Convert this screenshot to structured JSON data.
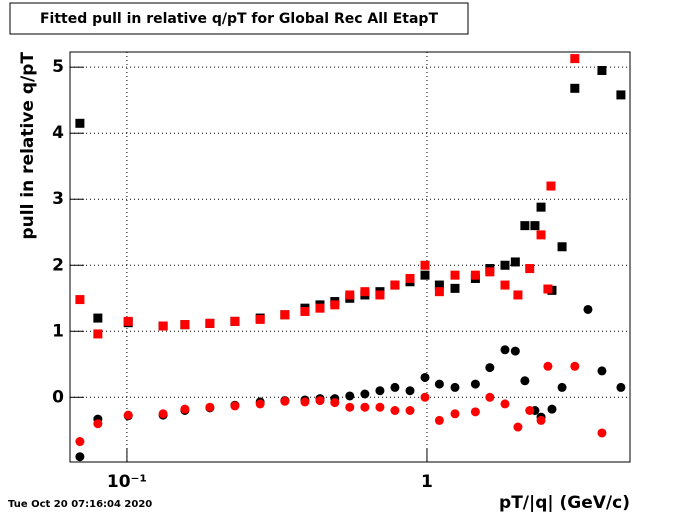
{
  "chart_data": {
    "type": "scatter",
    "title": "Fitted pull in relative q/pT for Global Rec All EtapT",
    "x_label": "pT/|q| (GeV/c)",
    "y_label": "pull in relative q/pT",
    "timestamp": "Tue Oct 20 07:16:04 2020",
    "xlog": true,
    "grid": true,
    "xlim": [
      0.0646,
      4.75
    ],
    "ylim": [
      -0.98,
      5.23
    ],
    "xticks": [
      {
        "value": 0.1,
        "label": "10⁻¹"
      },
      1
    ],
    "yticks": [
      0,
      1,
      2,
      3,
      4,
      5
    ],
    "series": [
      {
        "name": "black squares",
        "color": "#000000",
        "marker": "square",
        "x": [
          0.0697,
          0.08,
          0.101,
          0.132,
          0.156,
          0.189,
          0.229,
          0.278,
          0.336,
          0.392,
          0.44,
          0.493,
          0.553,
          0.621,
          0.697,
          0.782,
          0.878,
          0.985,
          1.1,
          1.24,
          1.45,
          1.62,
          1.82,
          1.97,
          2.12,
          2.29,
          2.4,
          2.61,
          2.82,
          3.11,
          3.83,
          4.43
        ],
        "values": [
          4.15,
          1.2,
          1.13,
          1.08,
          1.1,
          1.12,
          1.15,
          1.2,
          1.25,
          1.35,
          1.4,
          1.45,
          1.5,
          1.55,
          1.6,
          1.7,
          1.75,
          1.85,
          1.7,
          1.65,
          1.8,
          1.95,
          2.0,
          2.05,
          2.6,
          2.6,
          2.88,
          1.62,
          2.28,
          4.68,
          4.95,
          4.58
        ]
      },
      {
        "name": "red squares",
        "color": "#ff0000",
        "marker": "square",
        "x": [
          0.0697,
          0.08,
          0.101,
          0.132,
          0.156,
          0.189,
          0.229,
          0.278,
          0.336,
          0.392,
          0.44,
          0.493,
          0.553,
          0.621,
          0.697,
          0.782,
          0.878,
          0.985,
          1.1,
          1.24,
          1.45,
          1.62,
          1.82,
          2.01,
          2.2,
          2.4,
          2.53,
          2.59,
          3.11
        ],
        "values": [
          1.48,
          0.96,
          1.15,
          1.08,
          1.1,
          1.12,
          1.15,
          1.18,
          1.25,
          1.3,
          1.35,
          1.4,
          1.55,
          1.6,
          1.55,
          1.7,
          1.8,
          2.0,
          1.6,
          1.85,
          1.85,
          1.9,
          1.7,
          1.55,
          1.95,
          2.46,
          1.64,
          3.2,
          5.13
        ]
      },
      {
        "name": "black circles",
        "color": "#000000",
        "marker": "circle",
        "x": [
          0.0697,
          0.08,
          0.101,
          0.132,
          0.156,
          0.189,
          0.229,
          0.278,
          0.336,
          0.392,
          0.44,
          0.493,
          0.553,
          0.621,
          0.697,
          0.782,
          0.878,
          0.985,
          1.1,
          1.24,
          1.45,
          1.62,
          1.82,
          1.97,
          2.12,
          2.29,
          2.4,
          2.61,
          2.82,
          3.44,
          3.83,
          4.43
        ],
        "values": [
          -0.9,
          -0.33,
          -0.28,
          -0.27,
          -0.2,
          -0.16,
          -0.12,
          -0.07,
          -0.05,
          -0.04,
          -0.02,
          -0.02,
          0.02,
          0.05,
          0.1,
          0.15,
          0.1,
          0.3,
          0.2,
          0.15,
          0.2,
          0.45,
          0.72,
          0.7,
          0.25,
          -0.2,
          -0.3,
          -0.18,
          0.15,
          1.33,
          0.4,
          0.15
        ]
      },
      {
        "name": "red circles",
        "color": "#ff0000",
        "marker": "circle",
        "x": [
          0.0697,
          0.08,
          0.101,
          0.132,
          0.156,
          0.189,
          0.229,
          0.278,
          0.336,
          0.392,
          0.44,
          0.493,
          0.553,
          0.621,
          0.697,
          0.782,
          0.878,
          0.985,
          1.1,
          1.24,
          1.45,
          1.62,
          1.82,
          2.01,
          2.2,
          2.4,
          2.53,
          3.11,
          3.83
        ],
        "values": [
          -0.67,
          -0.4,
          -0.27,
          -0.25,
          -0.18,
          -0.15,
          -0.13,
          -0.1,
          -0.06,
          -0.07,
          -0.05,
          -0.08,
          -0.15,
          -0.15,
          -0.15,
          -0.2,
          -0.2,
          0,
          -0.35,
          -0.25,
          -0.22,
          0,
          -0.1,
          -0.45,
          -0.2,
          -0.35,
          0.47,
          0.47,
          -0.54
        ]
      }
    ]
  }
}
